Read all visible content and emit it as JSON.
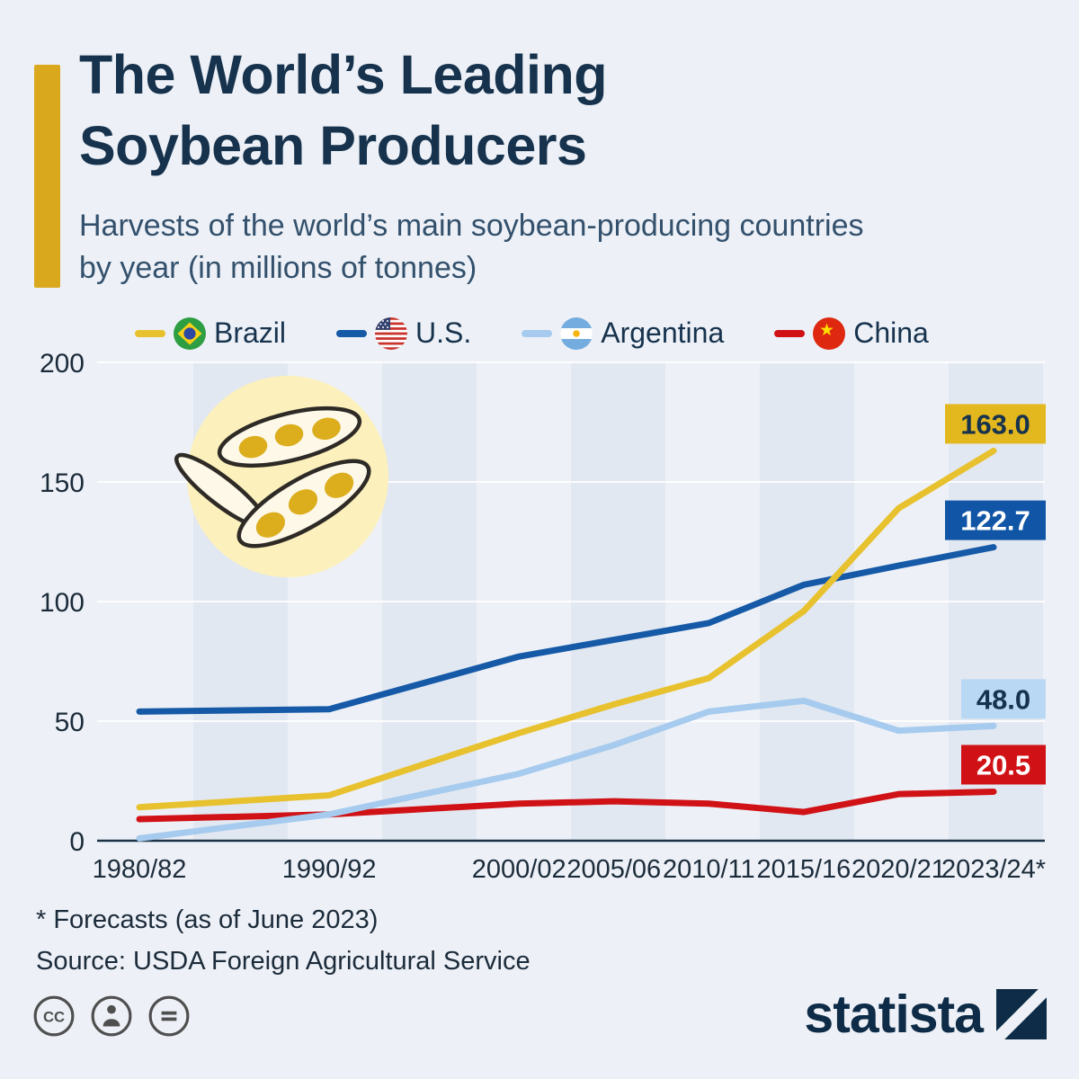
{
  "header": {
    "title_line1": "The World’s Leading",
    "title_line2": "Soybean Producers",
    "subtitle_line1": "Harvests of the world’s main soybean-producing countries",
    "subtitle_line2": "by year (in millions of tonnes)"
  },
  "colors": {
    "background": "#edf1f7",
    "band": "#e2e8f1",
    "accent_bar": "#d9a81c",
    "title": "#16324d",
    "zero_line": "#1b3145",
    "gridline": "#ffffff",
    "axis_text": "#1c2b3a"
  },
  "legend": [
    {
      "label": "Brazil",
      "color": "#e8c12e"
    },
    {
      "label": "U.S.",
      "color": "#1559a7"
    },
    {
      "label": "Argentina",
      "color": "#a6cbee"
    },
    {
      "label": "China",
      "color": "#d01217"
    }
  ],
  "chart_data": {
    "type": "line",
    "title": "The World’s Leading Soybean Producers",
    "unit": "millions of tonnes",
    "x_labels": [
      "1980/82",
      "1990/92",
      "2000/02",
      "2005/06",
      "2010/11",
      "2015/16",
      "2020/21",
      "2023/24*"
    ],
    "x_positions": [
      0,
      2,
      4,
      5,
      6,
      7,
      8,
      9
    ],
    "ylim": [
      0,
      200
    ],
    "yticks": [
      0,
      50,
      100,
      150,
      200
    ],
    "grid": true,
    "legend_position": "top",
    "series": [
      {
        "name": "Brazil",
        "color": "#e8c12e",
        "values": [
          14,
          19,
          45,
          57,
          68,
          96,
          139,
          163
        ],
        "end_label": "163.0",
        "label_bg": "#e3b71e",
        "label_fg": "#16324d"
      },
      {
        "name": "U.S.",
        "color": "#1559a7",
        "values": [
          54,
          55,
          77,
          84,
          91,
          107,
          115,
          122.7
        ],
        "end_label": "122.7",
        "label_bg": "#1156a6",
        "label_fg": "#ffffff"
      },
      {
        "name": "Argentina",
        "color": "#a6cbee",
        "values": [
          1,
          11,
          28,
          40,
          54,
          58.5,
          46,
          48
        ],
        "end_label": "48.0",
        "label_bg": "#b9d8f4",
        "label_fg": "#16324d"
      },
      {
        "name": "China",
        "color": "#d01217",
        "values": [
          9,
          11,
          15.5,
          16.5,
          15.5,
          12,
          19.5,
          20.5
        ],
        "end_label": "20.5",
        "label_bg": "#d01217",
        "label_fg": "#ffffff"
      }
    ]
  },
  "footnotes": {
    "forecast": "* Forecasts (as of June 2023)",
    "source": "Source: USDA Foreign Agricultural Service"
  },
  "license": {
    "cc_glyph": "CC"
  },
  "branding": {
    "logo_text": "statista"
  }
}
